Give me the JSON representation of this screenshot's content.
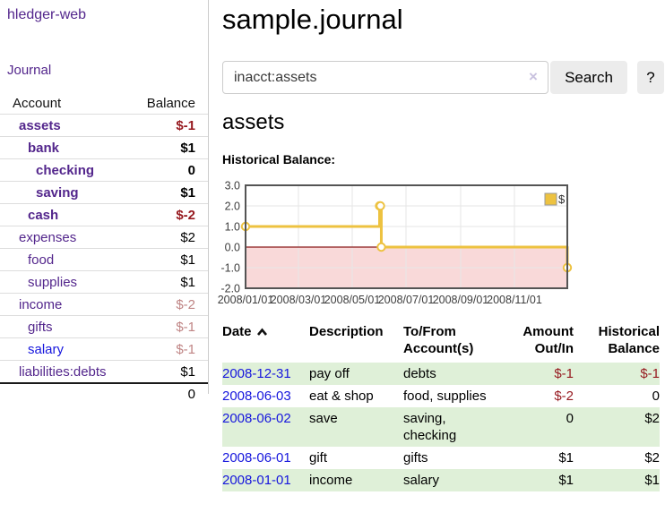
{
  "app": {
    "title": "hledger-web"
  },
  "sidebar": {
    "journal_link": "Journal",
    "account_header": "Account",
    "balance_header": "Balance",
    "accounts": [
      {
        "name": "assets",
        "balance": "$-1"
      },
      {
        "name": "bank",
        "balance": "$1"
      },
      {
        "name": "checking",
        "balance": "0"
      },
      {
        "name": "saving",
        "balance": "$1"
      },
      {
        "name": "cash",
        "balance": "$-2"
      },
      {
        "name": "expenses",
        "balance": "$2"
      },
      {
        "name": "food",
        "balance": "$1"
      },
      {
        "name": "supplies",
        "balance": "$1"
      },
      {
        "name": "income",
        "balance": "$-2"
      },
      {
        "name": "gifts",
        "balance": "$-1"
      },
      {
        "name": "salary",
        "balance": "$-1"
      },
      {
        "name": "liabilities:debts",
        "balance": "$1"
      }
    ],
    "total": "0"
  },
  "main": {
    "title": "sample.journal",
    "account_heading": "assets",
    "chart_heading": "Historical Balance:"
  },
  "search": {
    "value": "inacct:assets",
    "clear_icon": "×",
    "button": "Search",
    "help_button": "?"
  },
  "chart_data": {
    "type": "line",
    "title": "Historical Balance:",
    "step": true,
    "x": [
      "2008-01-01",
      "2008-06-01",
      "2008-06-02",
      "2008-06-03",
      "2008-12-31"
    ],
    "series": [
      {
        "name": "$",
        "values": [
          1,
          2,
          2,
          0,
          -1
        ]
      }
    ],
    "xlim": [
      "2008-01-01",
      "2008-12-31"
    ],
    "ylim": [
      -2,
      3
    ],
    "x_tick_labels": [
      "2008/01/01",
      "2008/03/01",
      "2008/05/01",
      "2008/07/01",
      "2008/09/01",
      "2008/11/01"
    ],
    "y_tick_labels": [
      "3.0",
      "2.0",
      "1.0",
      "0.0",
      "-1.0",
      "-2.0"
    ],
    "grid": true,
    "legend_position": "top-right",
    "legend_label": "$",
    "colors": {
      "line": "#edc240",
      "marker_fill": "#ffffff",
      "negative_region": "#f9d9d9",
      "zero_line": "#8b1a1a",
      "border": "#545454",
      "gridline": "#e6e6e6",
      "tick_text": "#3d3d3d"
    }
  },
  "register": {
    "headers": {
      "date": "Date",
      "description": "Description",
      "to_from": "To/From Account(s)",
      "amount": "Amount Out/In",
      "balance": "Historical Balance"
    },
    "rows": [
      {
        "date": "2008-12-31",
        "description": "pay off",
        "to_from": "debts",
        "amount": "$-1",
        "balance": "$-1"
      },
      {
        "date": "2008-06-03",
        "description": "eat & shop",
        "to_from": "food, supplies",
        "amount": "$-2",
        "balance": "0"
      },
      {
        "date": "2008-06-02",
        "description": "save",
        "to_from": "saving, checking",
        "amount": "0",
        "balance": "$2"
      },
      {
        "date": "2008-06-01",
        "description": "gift",
        "to_from": "gifts",
        "amount": "$1",
        "balance": "$2"
      },
      {
        "date": "2008-01-01",
        "description": "income",
        "to_from": "salary",
        "amount": "$1",
        "balance": "$1"
      }
    ]
  }
}
